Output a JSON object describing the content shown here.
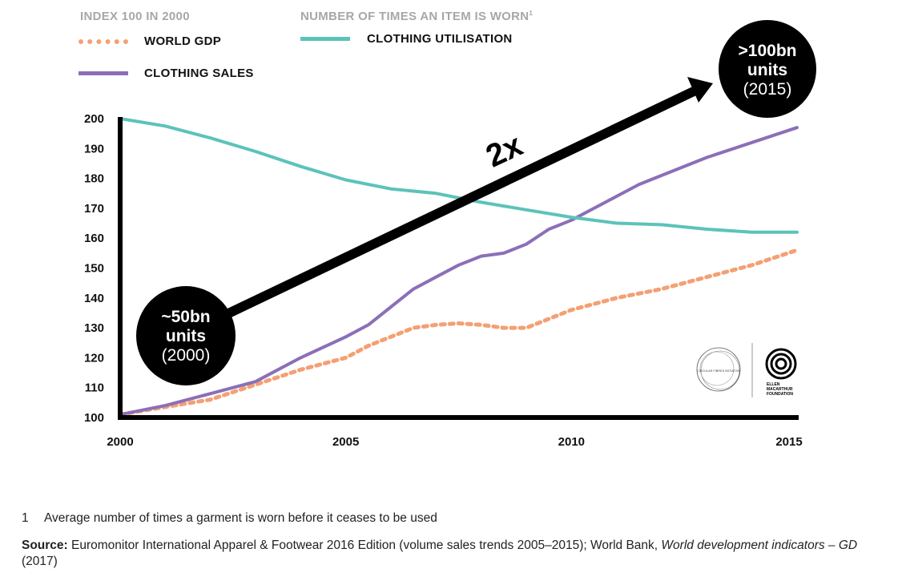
{
  "legend": {
    "left_header": "INDEX 100 IN 2000",
    "right_header": "NUMBER OF TIMES AN ITEM IS WORN",
    "right_header_sup": "1",
    "items": [
      {
        "key": "gdp",
        "label": "WORLD GDP",
        "color": "#f4a074",
        "style": "dotted"
      },
      {
        "key": "sales",
        "label": "CLOTHING SALES",
        "color": "#8b6fb8",
        "style": "solid"
      },
      {
        "key": "util",
        "label": "CLOTHING UTILISATION",
        "color": "#5cc3b9",
        "style": "solid"
      }
    ]
  },
  "annotations": {
    "start_bubble": {
      "value": "~50bn",
      "unit": "units",
      "year": "(2000)"
    },
    "end_bubble": {
      "value": ">100bn",
      "unit": "units",
      "year": "(2015)"
    },
    "multiplier": "2x"
  },
  "logos": {
    "cfi": "CIRCULAR FIBRES INITIATIVE",
    "emf_lines": [
      "ELLEN",
      "MACARTHUR",
      "FOUNDATION"
    ]
  },
  "footnote": {
    "number": "1",
    "text": "Average number of times a garment is worn before it ceases to be used"
  },
  "source": {
    "label": "Source:",
    "text": " Euromonitor International Apparel & Footwear 2016 Edition (volume sales trends 2005–2015); World Bank, ",
    "italic": "World development indicators – GD",
    "tail": " (2017)"
  },
  "chart_data": {
    "type": "line",
    "xlim": [
      2000,
      2015
    ],
    "ylim": [
      100,
      200
    ],
    "x_ticks": [
      "2000",
      "2005",
      "2010",
      "2015"
    ],
    "y_ticks": [
      "100",
      "110",
      "120",
      "130",
      "140",
      "150",
      "160",
      "170",
      "180",
      "190",
      "200"
    ],
    "series": [
      {
        "key": "gdp",
        "name": "WORLD GDP",
        "color": "#f4a074",
        "style": "dotted",
        "points": [
          [
            2000,
            101
          ],
          [
            2001,
            103.5
          ],
          [
            2002,
            106
          ],
          [
            2003,
            111
          ],
          [
            2004,
            116
          ],
          [
            2005,
            120
          ],
          [
            2005.5,
            124
          ],
          [
            2006,
            127
          ],
          [
            2006.5,
            130
          ],
          [
            2007,
            131
          ],
          [
            2007.5,
            131.5
          ],
          [
            2008,
            131
          ],
          [
            2008.5,
            130
          ],
          [
            2009,
            130
          ],
          [
            2009.5,
            133
          ],
          [
            2010,
            136
          ],
          [
            2010.5,
            138
          ],
          [
            2011,
            140
          ],
          [
            2012,
            143
          ],
          [
            2013,
            147
          ],
          [
            2014,
            151
          ],
          [
            2015,
            156
          ]
        ]
      },
      {
        "key": "sales",
        "name": "CLOTHING SALES",
        "color": "#8b6fb8",
        "style": "solid",
        "points": [
          [
            2000,
            101
          ],
          [
            2001,
            104
          ],
          [
            2002,
            108
          ],
          [
            2003,
            112
          ],
          [
            2004,
            120
          ],
          [
            2005,
            127
          ],
          [
            2005.5,
            131
          ],
          [
            2006,
            137
          ],
          [
            2006.5,
            143
          ],
          [
            2007,
            147
          ],
          [
            2007.5,
            151
          ],
          [
            2008,
            154
          ],
          [
            2008.5,
            155
          ],
          [
            2009,
            158
          ],
          [
            2009.5,
            163
          ],
          [
            2010,
            166
          ],
          [
            2010.5,
            170
          ],
          [
            2011,
            174
          ],
          [
            2011.5,
            178
          ],
          [
            2012,
            181
          ],
          [
            2013,
            187
          ],
          [
            2014,
            192
          ],
          [
            2015,
            197
          ]
        ]
      },
      {
        "key": "util",
        "name": "CLOTHING UTILISATION",
        "color": "#5cc3b9",
        "style": "solid",
        "points": [
          [
            2000,
            200
          ],
          [
            2001,
            197.5
          ],
          [
            2002,
            193.5
          ],
          [
            2003,
            189
          ],
          [
            2004,
            184
          ],
          [
            2005,
            179.5
          ],
          [
            2006,
            176.5
          ],
          [
            2007,
            175
          ],
          [
            2008,
            172
          ],
          [
            2009,
            169.5
          ],
          [
            2010,
            167
          ],
          [
            2011,
            165
          ],
          [
            2012,
            164.5
          ],
          [
            2013,
            163
          ],
          [
            2014,
            162
          ],
          [
            2015,
            162
          ]
        ]
      }
    ]
  }
}
